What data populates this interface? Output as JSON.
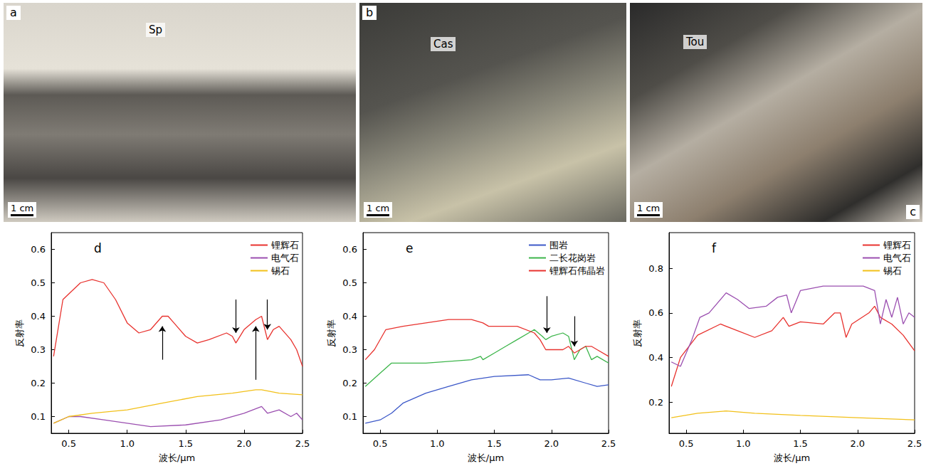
{
  "photos": [
    {
      "letter": "a",
      "mineral": "Sp",
      "scale": "1 cm"
    },
    {
      "letter": "b",
      "mineral": "Cas",
      "scale": "1 cm"
    },
    {
      "letter": "c",
      "mineral": "Tou",
      "scale": "1 cm"
    }
  ],
  "chart_data": [
    {
      "type": "line",
      "title": "d",
      "xlabel": "波长/μm",
      "ylabel": "反射率",
      "xlim": [
        0.35,
        2.5
      ],
      "xticks": [
        0.5,
        {
          "value": 1.0,
          "label": "1.0"
        },
        1.5,
        {
          "value": 2.0,
          "label": "2.0"
        },
        2.5
      ],
      "ylim": [
        0.05,
        0.65
      ],
      "yticks": [
        0.1,
        0.2,
        0.3,
        0.4,
        0.5,
        0.6
      ],
      "grid": false,
      "legend": "upper right",
      "series": [
        {
          "name": "锂辉石",
          "color": "#e8322e",
          "x": [
            0.37,
            0.45,
            0.6,
            0.7,
            0.8,
            0.9,
            1.0,
            1.1,
            1.2,
            1.3,
            1.35,
            1.4,
            1.5,
            1.6,
            1.7,
            1.85,
            1.9,
            1.93,
            2.0,
            2.1,
            2.15,
            2.2,
            2.25,
            2.3,
            2.4,
            2.45,
            2.5
          ],
          "values": [
            0.28,
            0.45,
            0.5,
            0.51,
            0.5,
            0.45,
            0.38,
            0.35,
            0.36,
            0.4,
            0.4,
            0.38,
            0.34,
            0.32,
            0.33,
            0.35,
            0.34,
            0.32,
            0.36,
            0.39,
            0.4,
            0.33,
            0.36,
            0.37,
            0.33,
            0.3,
            0.25
          ]
        },
        {
          "name": "电气石",
          "color": "#9b4fb0",
          "x": [
            0.37,
            0.5,
            0.6,
            0.8,
            1.0,
            1.2,
            1.5,
            1.8,
            2.0,
            2.15,
            2.2,
            2.3,
            2.4,
            2.45,
            2.5
          ],
          "values": [
            0.08,
            0.1,
            0.1,
            0.09,
            0.08,
            0.07,
            0.075,
            0.09,
            0.11,
            0.13,
            0.11,
            0.12,
            0.1,
            0.11,
            0.09
          ]
        },
        {
          "name": "锡石",
          "color": "#f2c019",
          "x": [
            0.37,
            0.5,
            0.7,
            1.0,
            1.3,
            1.6,
            1.9,
            2.1,
            2.15,
            2.3,
            2.5
          ],
          "values": [
            0.08,
            0.1,
            0.11,
            0.12,
            0.14,
            0.16,
            0.17,
            0.18,
            0.18,
            0.17,
            0.165
          ]
        }
      ],
      "arrows": [
        {
          "x": 1.3,
          "y_from": 0.27,
          "y_to": 0.37
        },
        {
          "x": 1.93,
          "y_from": 0.45,
          "y_to": 0.35
        },
        {
          "x": 2.1,
          "y_from": 0.21,
          "y_to": 0.37
        },
        {
          "x": 2.2,
          "y_from": 0.45,
          "y_to": 0.36
        }
      ]
    },
    {
      "type": "line",
      "title": "e",
      "xlabel": "波长/μm",
      "ylabel": "反射率",
      "xlim": [
        0.35,
        2.5
      ],
      "xticks": [
        0.5,
        {
          "value": 1.0,
          "label": "1.0"
        },
        1.5,
        {
          "value": 2.0,
          "label": "2.0"
        },
        2.5
      ],
      "ylim": [
        0.05,
        0.65
      ],
      "yticks": [
        0.1,
        0.2,
        0.3,
        0.4,
        0.5,
        0.6
      ],
      "grid": false,
      "legend": "upper right",
      "series": [
        {
          "name": "围岩",
          "color": "#3c58c8",
          "x": [
            0.37,
            0.5,
            0.6,
            0.7,
            0.9,
            1.1,
            1.3,
            1.5,
            1.8,
            1.9,
            2.0,
            2.15,
            2.3,
            2.4,
            2.5
          ],
          "values": [
            0.08,
            0.09,
            0.11,
            0.14,
            0.17,
            0.19,
            0.21,
            0.22,
            0.225,
            0.21,
            0.21,
            0.215,
            0.2,
            0.19,
            0.195
          ]
        },
        {
          "name": "二长花岗岩",
          "color": "#3cb54a",
          "x": [
            0.37,
            0.5,
            0.6,
            0.9,
            1.3,
            1.38,
            1.4,
            1.5,
            1.6,
            1.7,
            1.8,
            1.85,
            1.92,
            1.95,
            2.0,
            2.1,
            2.15,
            2.2,
            2.25,
            2.3,
            2.35,
            2.4,
            2.5
          ],
          "values": [
            0.19,
            0.23,
            0.26,
            0.26,
            0.27,
            0.28,
            0.27,
            0.29,
            0.31,
            0.33,
            0.35,
            0.36,
            0.34,
            0.33,
            0.34,
            0.35,
            0.34,
            0.27,
            0.3,
            0.31,
            0.27,
            0.28,
            0.26
          ]
        },
        {
          "name": "锂辉石伟晶岩",
          "color": "#e8322e",
          "x": [
            0.37,
            0.45,
            0.55,
            0.7,
            0.9,
            1.1,
            1.3,
            1.4,
            1.45,
            1.7,
            1.85,
            1.9,
            1.95,
            2.1,
            2.15,
            2.2,
            2.3,
            2.35,
            2.4,
            2.5
          ],
          "values": [
            0.27,
            0.3,
            0.36,
            0.37,
            0.38,
            0.39,
            0.39,
            0.38,
            0.37,
            0.37,
            0.35,
            0.33,
            0.3,
            0.3,
            0.31,
            0.29,
            0.31,
            0.31,
            0.3,
            0.28
          ]
        }
      ],
      "arrows": [
        {
          "x": 1.96,
          "y_from": 0.46,
          "y_to": 0.35
        },
        {
          "x": 2.2,
          "y_from": 0.4,
          "y_to": 0.31
        }
      ]
    },
    {
      "type": "line",
      "title": "f",
      "xlabel": "波长/μm",
      "ylabel": "反射率",
      "xlim": [
        0.35,
        2.5
      ],
      "xticks": [
        0.5,
        {
          "value": 1.0,
          "label": "1.0"
        },
        1.5,
        {
          "value": 2.0,
          "label": "2.0"
        },
        2.5
      ],
      "ylim": [
        0.06,
        0.96
      ],
      "yticks": [
        0.2,
        0.4,
        0.6,
        0.8
      ],
      "grid": false,
      "legend": "upper right",
      "series": [
        {
          "name": "锂辉石",
          "color": "#e8322e",
          "x": [
            0.37,
            0.45,
            0.6,
            0.8,
            0.95,
            1.1,
            1.25,
            1.35,
            1.4,
            1.5,
            1.7,
            1.8,
            1.85,
            1.9,
            1.95,
            2.1,
            2.15,
            2.2,
            2.3,
            2.4,
            2.5
          ],
          "values": [
            0.27,
            0.4,
            0.5,
            0.55,
            0.52,
            0.49,
            0.52,
            0.58,
            0.54,
            0.56,
            0.55,
            0.6,
            0.6,
            0.49,
            0.55,
            0.6,
            0.63,
            0.58,
            0.55,
            0.5,
            0.43
          ]
        },
        {
          "name": "电气石",
          "color": "#9b4fb0",
          "x": [
            0.37,
            0.45,
            0.55,
            0.62,
            0.7,
            0.85,
            0.95,
            1.05,
            1.2,
            1.3,
            1.38,
            1.42,
            1.5,
            1.7,
            1.9,
            2.05,
            2.15,
            2.2,
            2.25,
            2.3,
            2.35,
            2.4,
            2.45,
            2.5
          ],
          "values": [
            0.38,
            0.36,
            0.48,
            0.58,
            0.6,
            0.69,
            0.66,
            0.62,
            0.63,
            0.67,
            0.68,
            0.6,
            0.7,
            0.72,
            0.72,
            0.72,
            0.7,
            0.55,
            0.66,
            0.58,
            0.67,
            0.55,
            0.6,
            0.58
          ]
        },
        {
          "name": "锡石",
          "color": "#f2c019",
          "x": [
            0.37,
            0.6,
            0.85,
            1.1,
            1.5,
            2.0,
            2.5
          ],
          "values": [
            0.13,
            0.15,
            0.16,
            0.15,
            0.14,
            0.13,
            0.12
          ]
        }
      ]
    }
  ]
}
